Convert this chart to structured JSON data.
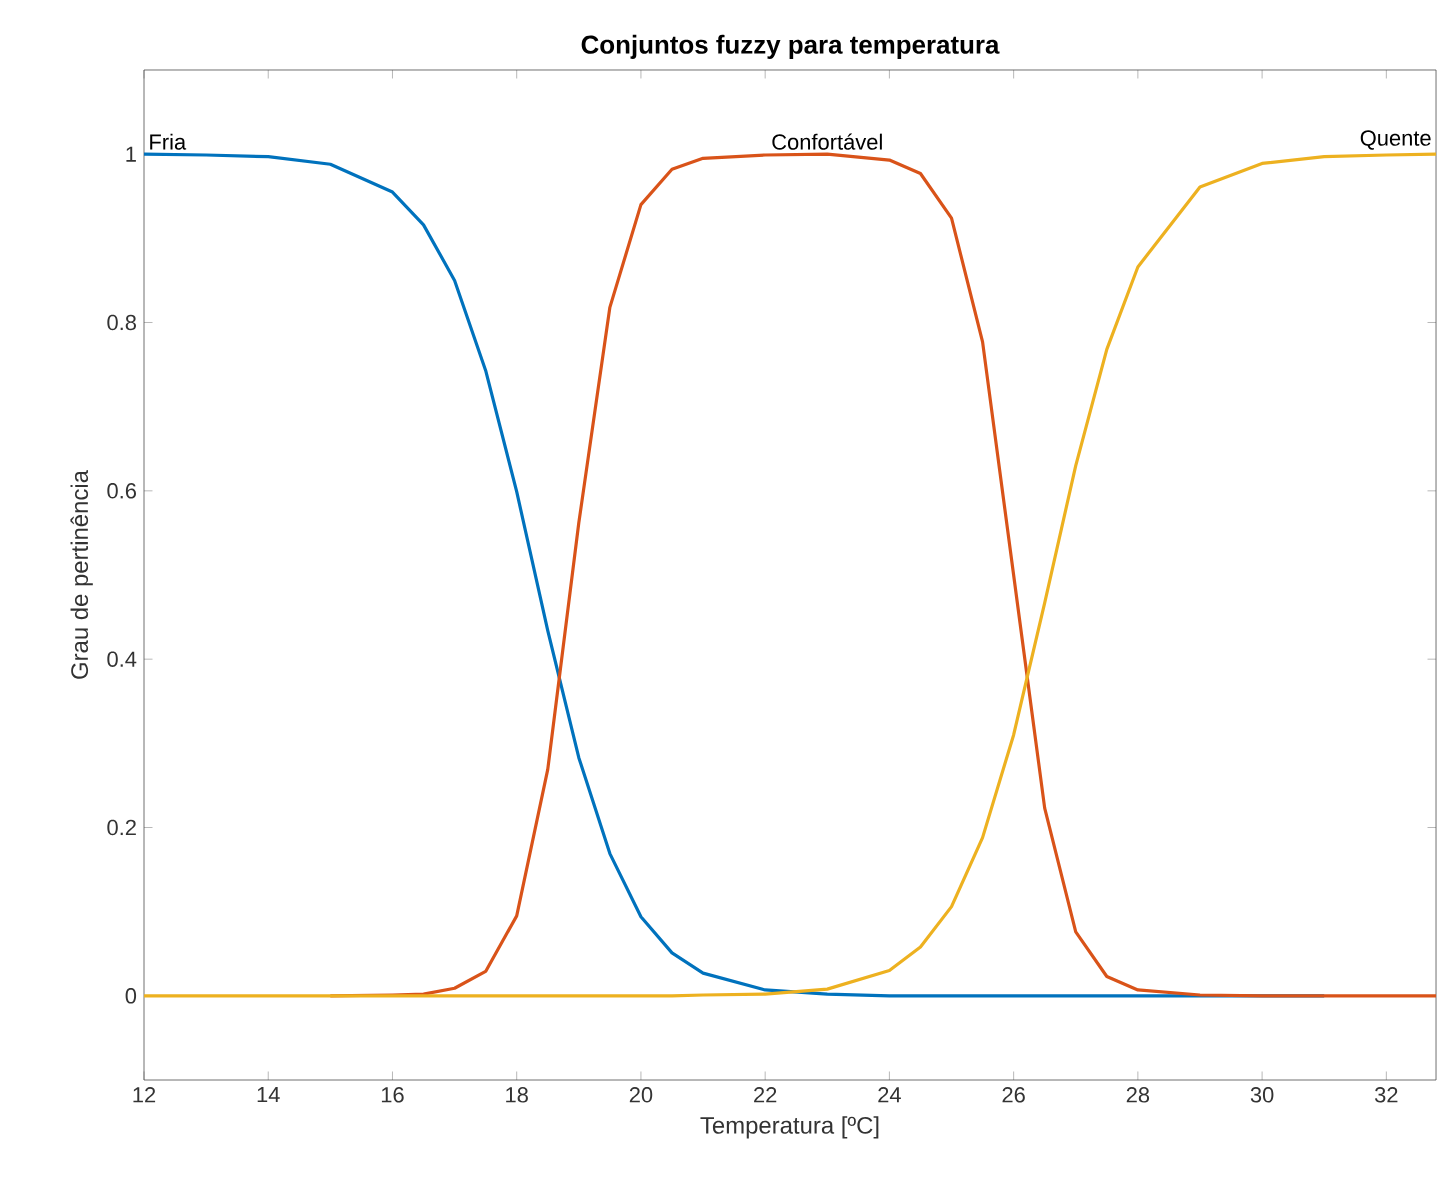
{
  "chart_data": {
    "type": "line",
    "title": "Conjuntos fuzzy para temperatura",
    "xlabel": "Temperatura [ºC]",
    "ylabel": "Grau de pertinência",
    "x": [
      12,
      13,
      14,
      15,
      16,
      16.5,
      17,
      17.5,
      18,
      18.5,
      19,
      19.5,
      20,
      20.5,
      21,
      22,
      23,
      24,
      24.5,
      25,
      25.5,
      26,
      26.5,
      27,
      27.5,
      28,
      29,
      30,
      31,
      32,
      32.8
    ],
    "series": [
      {
        "name": "Fria",
        "color": "#0072bd",
        "values": [
          1.0,
          0.999,
          0.997,
          0.988,
          0.955,
          0.916,
          0.85,
          0.743,
          0.599,
          0.434,
          0.283,
          0.169,
          0.094,
          0.051,
          0.027,
          0.007,
          0.002,
          0,
          0,
          0,
          0,
          0,
          0,
          0,
          0,
          0,
          0,
          0,
          0,
          null,
          null
        ]
      },
      {
        "name": "Confortável",
        "color": "#d95319",
        "values": [
          null,
          null,
          null,
          0,
          0.001,
          0.002,
          0.009,
          0.029,
          0.095,
          0.269,
          0.562,
          0.818,
          0.94,
          0.982,
          0.995,
          0.999,
          1.0,
          0.993,
          0.977,
          0.924,
          0.777,
          0.5,
          0.223,
          0.076,
          0.023,
          0.007,
          0.001,
          0,
          0,
          0,
          0
        ]
      },
      {
        "name": "Quente",
        "color": "#edb120",
        "values": [
          0,
          0,
          0,
          0,
          0,
          0,
          0,
          0,
          0,
          0,
          0,
          0,
          0,
          0,
          0.001,
          0.002,
          0.008,
          0.03,
          0.058,
          0.106,
          0.188,
          0.31,
          0.467,
          0.63,
          0.768,
          0.866,
          0.961,
          0.989,
          0.997,
          0.999,
          1.0
        ]
      }
    ],
    "xlim": [
      12,
      32.8
    ],
    "ylim": [
      -0.1,
      1.1
    ],
    "xticks": [
      12,
      14,
      16,
      18,
      20,
      22,
      24,
      26,
      28,
      30,
      32
    ],
    "yticks": [
      0,
      0.2,
      0.4,
      0.6,
      0.8,
      1
    ],
    "grid": false,
    "legend": false,
    "line_style": "solid",
    "marker": "none"
  }
}
